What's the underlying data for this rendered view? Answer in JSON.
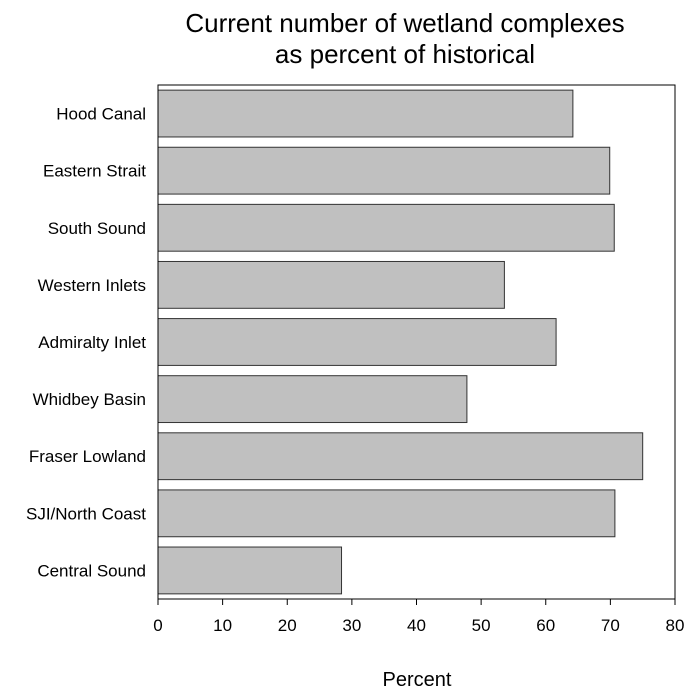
{
  "chart_data": {
    "type": "bar",
    "orientation": "horizontal",
    "title_lines": [
      "Current number of wetland complexes",
      "as percent of historical"
    ],
    "categories": [
      "Hood Canal",
      "Eastern Strait",
      "South Sound",
      "Western Inlets",
      "Admiralty Inlet",
      "Whidbey Basin",
      "Fraser Lowland",
      "SJI/North Coast",
      "Central Sound"
    ],
    "values": [
      64.2,
      69.9,
      70.6,
      53.6,
      61.6,
      47.8,
      75.0,
      70.7,
      28.4
    ],
    "xlabel": "Percent",
    "ylabel": "",
    "xlim": [
      0,
      80
    ],
    "xticks": [
      "0",
      "10",
      "20",
      "30",
      "40",
      "50",
      "60",
      "70",
      "80"
    ],
    "grid": false,
    "legend": "none",
    "bar_color": "#c0c0c0",
    "bar_edge_color": "#333333"
  }
}
